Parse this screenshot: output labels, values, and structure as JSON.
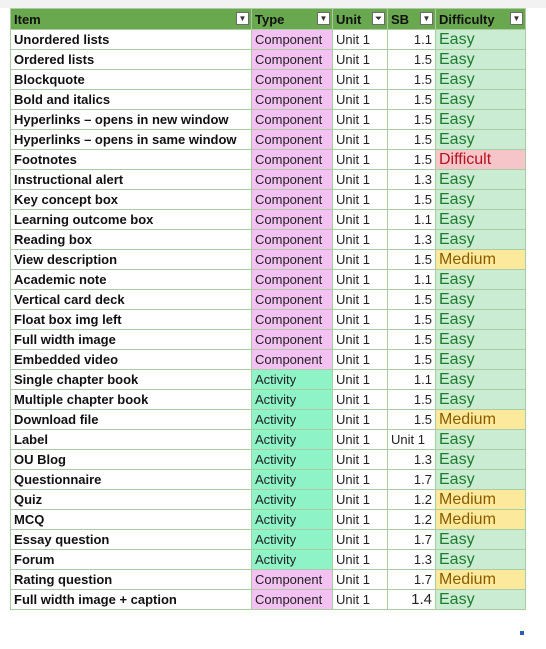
{
  "headers": {
    "item": "Item",
    "type": "Type",
    "unit": "Unit",
    "sb": "SB",
    "difficulty": "Difficulty"
  },
  "filter_icons": {
    "item": "chevron-down-icon",
    "type": "chevron-down-icon",
    "unit": "filter-active-icon",
    "sb": "chevron-down-icon",
    "difficulty": "chevron-down-icon"
  },
  "colors": {
    "header": "#6aa84f",
    "component": "#f3c2f3",
    "activity": "#8ef4c8",
    "easy": "#c9ecd2",
    "medium": "#fce99b",
    "difficult": "#f6c5c9"
  },
  "rows": [
    {
      "item": "Unordered lists",
      "type": "Component",
      "unit": "Unit 1",
      "sb": "1.1",
      "difficulty": "Easy"
    },
    {
      "item": "Ordered lists",
      "type": "Component",
      "unit": "Unit 1",
      "sb": "1.5",
      "difficulty": "Easy"
    },
    {
      "item": "Blockquote",
      "type": "Component",
      "unit": "Unit 1",
      "sb": "1.5",
      "difficulty": "Easy"
    },
    {
      "item": "Bold and italics",
      "type": "Component",
      "unit": "Unit 1",
      "sb": "1.5",
      "difficulty": "Easy"
    },
    {
      "item": "Hyperlinks – opens in new window",
      "type": "Component",
      "unit": "Unit 1",
      "sb": "1.5",
      "difficulty": "Easy"
    },
    {
      "item": "Hyperlinks – opens in same window",
      "type": "Component",
      "unit": "Unit 1",
      "sb": "1.5",
      "difficulty": "Easy"
    },
    {
      "item": "Footnotes",
      "type": "Component",
      "unit": "Unit 1",
      "sb": "1.5",
      "difficulty": "Difficult"
    },
    {
      "item": "Instructional alert",
      "type": "Component",
      "unit": "Unit 1",
      "sb": "1.3",
      "difficulty": "Easy"
    },
    {
      "item": "Key concept box",
      "type": "Component",
      "unit": "Unit 1",
      "sb": "1.5",
      "difficulty": "Easy"
    },
    {
      "item": "Learning outcome box",
      "type": "Component",
      "unit": "Unit 1",
      "sb": "1.1",
      "difficulty": "Easy"
    },
    {
      "item": "Reading box",
      "type": "Component",
      "unit": "Unit 1",
      "sb": "1.3",
      "difficulty": "Easy"
    },
    {
      "item": "View description",
      "type": "Component",
      "unit": "Unit 1",
      "sb": "1.5",
      "difficulty": "Medium"
    },
    {
      "item": "Academic note",
      "type": "Component",
      "unit": "Unit 1",
      "sb": "1.1",
      "difficulty": "Easy"
    },
    {
      "item": "Vertical card deck",
      "type": "Component",
      "unit": "Unit 1",
      "sb": "1.5",
      "difficulty": "Easy"
    },
    {
      "item": "Float box img left",
      "type": "Component",
      "unit": "Unit 1",
      "sb": "1.5",
      "difficulty": "Easy"
    },
    {
      "item": "Full width image",
      "type": "Component",
      "unit": "Unit 1",
      "sb": "1.5",
      "difficulty": "Easy"
    },
    {
      "item": "Embedded video",
      "type": "Component",
      "unit": "Unit 1",
      "sb": "1.5",
      "difficulty": "Easy"
    },
    {
      "item": "Single chapter book",
      "type": "Activity",
      "unit": "Unit 1",
      "sb": "1.1",
      "difficulty": "Easy"
    },
    {
      "item": "Multiple chapter book",
      "type": "Activity",
      "unit": "Unit 1",
      "sb": "1.5",
      "difficulty": "Easy"
    },
    {
      "item": "Download file",
      "type": "Activity",
      "unit": "Unit 1",
      "sb": "1.5",
      "difficulty": "Medium"
    },
    {
      "item": "Label",
      "type": "Activity",
      "unit": "Unit 1",
      "sb": "Unit 1",
      "difficulty": "Easy"
    },
    {
      "item": "OU Blog",
      "type": "Activity",
      "unit": "Unit 1",
      "sb": "1.3",
      "difficulty": "Easy"
    },
    {
      "item": "Questionnaire",
      "type": "Activity",
      "unit": "Unit 1",
      "sb": "1.7",
      "difficulty": "Easy"
    },
    {
      "item": "Quiz",
      "type": "Activity",
      "unit": "Unit 1",
      "sb": "1.2",
      "difficulty": "Medium"
    },
    {
      "item": "MCQ",
      "type": "Activity",
      "unit": "Unit 1",
      "sb": "1.2",
      "difficulty": "Medium"
    },
    {
      "item": "Essay question",
      "type": "Activity",
      "unit": "Unit 1",
      "sb": "1.7",
      "difficulty": "Easy"
    },
    {
      "item": "Forum",
      "type": "Activity",
      "unit": "Unit 1",
      "sb": "1.3",
      "difficulty": "Easy"
    },
    {
      "item": "Rating question",
      "type": "Component",
      "unit": "Unit 1",
      "sb": "1.7",
      "difficulty": "Medium"
    },
    {
      "item": "Full width image + caption",
      "type": "Component",
      "unit": "Unit 1",
      "sb": "1.4",
      "difficulty": "Easy"
    }
  ]
}
